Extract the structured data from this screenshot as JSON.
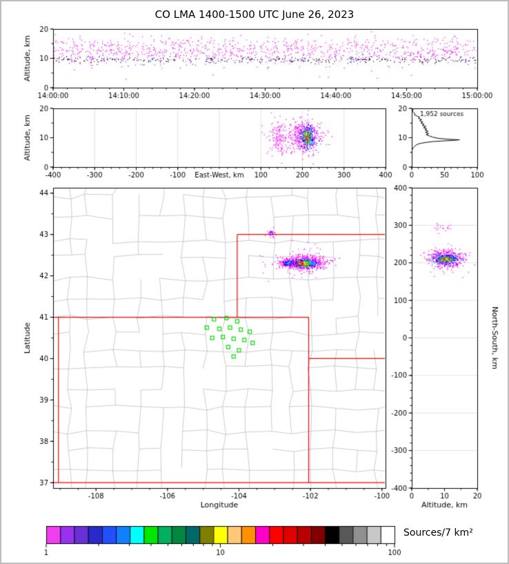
{
  "title": "CO LMA 1400-1500 UTC June 26, 2023",
  "colorbar": {
    "label": "Sources/7 km²",
    "scale": "log",
    "range": [
      1,
      100
    ],
    "major_ticks": [
      "1",
      "10",
      "100"
    ],
    "major_tick_values": [
      1,
      10,
      100
    ],
    "minor_tick_values": [
      2,
      3,
      4,
      5,
      6,
      7,
      8,
      9,
      20,
      30,
      40,
      50,
      60,
      70,
      80,
      90
    ],
    "colors": [
      "#f03ef0",
      "#9932f0",
      "#6a30d8",
      "#2a28c8",
      "#2050ff",
      "#1080ff",
      "#00ffff",
      "#00e800",
      "#00b060",
      "#008840",
      "#006868",
      "#7f7f00",
      "#ffff00",
      "#ffc878",
      "#ff9000",
      "#ff00c8",
      "#ff0000",
      "#e00000",
      "#b80000",
      "#800000",
      "#000000",
      "#585858",
      "#909090",
      "#c8c8c8",
      "#ffffff"
    ]
  },
  "chart_data": [
    {
      "id": "time_height",
      "type": "scatter",
      "ylabel": "Altitude, km",
      "xlim": [
        0,
        60
      ],
      "ylim": [
        0,
        20
      ],
      "xticks": {
        "values": [
          0,
          10,
          20,
          30,
          40,
          50,
          60
        ],
        "labels": [
          "14:00:00",
          "14:10:00",
          "14:20:00",
          "14:30:00",
          "14:40:00",
          "14:50:00",
          "15:00:00"
        ]
      },
      "yticks": {
        "values": [
          0,
          10,
          20
        ],
        "labels": [
          "0",
          "10",
          "20"
        ]
      },
      "minor": {
        "x": 2,
        "y": 5
      },
      "seed": 11,
      "clusters": [
        {
          "n": 850,
          "x": "uniform",
          "cy": 12.4,
          "sy": 2.3,
          "color": "#ff00ff",
          "size": 1.2
        },
        {
          "n": 130,
          "x": "uniform",
          "cy": 11.0,
          "sy": 2.6,
          "color": "#9900ff",
          "size": 1.2
        },
        {
          "n": 90,
          "x": "uniform",
          "cy": 14.5,
          "sy": 1.6,
          "color": "#ff00ff",
          "size": 1.2
        },
        {
          "n": 240,
          "x": "uniform",
          "cy": 9.4,
          "sy": 0.5,
          "color": "#000000",
          "size": 1.2
        },
        {
          "n": 80,
          "x": "uniform",
          "cy": 9.6,
          "sy": 0.8,
          "color": "#0000cc",
          "size": 1.2
        }
      ]
    },
    {
      "id": "ew_altitude",
      "type": "scatter",
      "ylabel": "Altitude, km",
      "xlabel": "East-West, km",
      "xlabel_inline": true,
      "xlim": [
        -400,
        400
      ],
      "ylim": [
        0,
        20
      ],
      "xticks": {
        "values": [
          -400,
          -300,
          -200,
          -100,
          100,
          200,
          300,
          400
        ],
        "labels": [
          "-400",
          "-300",
          "-200",
          "-100",
          "100",
          "200",
          "300",
          "400"
        ]
      },
      "yticks": {
        "values": [
          0,
          10,
          20
        ],
        "labels": [
          "0",
          "10",
          "20"
        ]
      },
      "grid": {
        "x": [
          -300,
          -200,
          -100,
          0,
          100,
          200,
          300
        ]
      },
      "minor": {
        "x": 20,
        "y": 5
      },
      "seed": 22,
      "clusters": [
        {
          "n": 140,
          "cx": 140,
          "sx": 12,
          "cy": 10.0,
          "sy": 2.6,
          "color": "#ff00ff",
          "size": 1.2
        },
        {
          "n": 45,
          "cx": 195,
          "sx": 40,
          "cy": 10.2,
          "sy": 3.2,
          "color": "#ff00ff",
          "size": 1.2
        },
        {
          "n": 430,
          "cx": 205,
          "sx": 20,
          "cy": 10.4,
          "sy": 2.7,
          "color": "#ff00ff",
          "size": 1.3
        },
        {
          "n": 175,
          "cx": 212,
          "sx": 10,
          "cy": 10.4,
          "sy": 2.1,
          "color": "#0000ee",
          "size": 1.3
        },
        {
          "n": 85,
          "cx": 213,
          "sx": 7,
          "cy": 10.3,
          "sy": 1.7,
          "color": "#00ccff",
          "size": 1.3
        },
        {
          "n": 50,
          "cx": 212,
          "sx": 5.5,
          "cy": 10.2,
          "sy": 1.4,
          "color": "#00cc00",
          "size": 1.3
        },
        {
          "n": 20,
          "cx": 211,
          "sx": 4.5,
          "cy": 10.2,
          "sy": 1.1,
          "color": "#ffee00",
          "size": 1.4
        },
        {
          "n": 12,
          "cx": 211,
          "sx": 4,
          "cy": 10.1,
          "sy": 1.0,
          "color": "#ff8800",
          "size": 1.4
        },
        {
          "n": 7,
          "cx": 210,
          "sx": 3.5,
          "cy": 10.1,
          "sy": 0.9,
          "color": "#ff0000",
          "size": 1.4
        }
      ]
    },
    {
      "id": "alt_histogram",
      "type": "line",
      "annotation": "1,952 sources",
      "xlim": [
        0,
        100
      ],
      "ylim": [
        0,
        20
      ],
      "xticks": {
        "values": [
          0,
          50,
          100
        ],
        "labels": [
          "0",
          "50",
          "100"
        ]
      },
      "yticks": {
        "values": [
          0,
          10,
          20
        ],
        "labels": [
          "0",
          "10",
          "20"
        ]
      },
      "minor": {
        "x": 10,
        "y": 5
      },
      "points": [
        [
          0,
          20
        ],
        [
          1,
          19.8
        ],
        [
          2,
          19.4
        ],
        [
          1,
          19.0
        ],
        [
          3,
          18.6
        ],
        [
          5,
          18.2
        ],
        [
          4,
          17.8
        ],
        [
          8,
          17.4
        ],
        [
          12,
          17.0
        ],
        [
          10,
          16.6
        ],
        [
          15,
          16.2
        ],
        [
          12,
          15.8
        ],
        [
          17,
          15.4
        ],
        [
          14,
          15.0
        ],
        [
          19,
          14.6
        ],
        [
          16,
          14.2
        ],
        [
          22,
          13.8
        ],
        [
          18,
          13.4
        ],
        [
          23,
          13.0
        ],
        [
          20,
          12.6
        ],
        [
          25,
          12.2
        ],
        [
          21,
          11.8
        ],
        [
          26,
          11.4
        ],
        [
          22,
          11.0
        ],
        [
          27,
          10.6
        ],
        [
          32,
          10.2
        ],
        [
          40,
          9.8
        ],
        [
          55,
          9.5
        ],
        [
          73,
          9.3
        ],
        [
          64,
          9.1
        ],
        [
          47,
          8.9
        ],
        [
          33,
          8.7
        ],
        [
          22,
          8.4
        ],
        [
          14,
          8.1
        ],
        [
          9,
          7.8
        ],
        [
          6,
          7.4
        ],
        [
          4,
          7.0
        ],
        [
          2,
          6.5
        ],
        [
          1,
          6.0
        ],
        [
          0,
          5.5
        ]
      ]
    },
    {
      "id": "map",
      "type": "map",
      "xlabel": "Longitude",
      "ylabel": "Latitude",
      "xlim": [
        -109.2,
        -99.9
      ],
      "ylim": [
        36.87,
        44.13
      ],
      "xticks": {
        "values": [
          -108,
          -106,
          -104,
          -102,
          -100
        ],
        "labels": [
          "-108",
          "-106",
          "-104",
          "-102",
          "-100"
        ]
      },
      "yticks": {
        "values": [
          37,
          38,
          39,
          40,
          41,
          42,
          43,
          44
        ],
        "labels": [
          "37",
          "38",
          "39",
          "40",
          "41",
          "42",
          "43",
          "44"
        ]
      },
      "minor": {
        "x": 0.5,
        "y": 0.5
      },
      "county_lines": {
        "seed": 7,
        "col_min": 0.45,
        "col_max": 0.8,
        "row_min": 0.36,
        "row_max": 0.6,
        "keep": 0.8,
        "color": "#b5b5b5"
      },
      "state_borders": {
        "color": "#ff0000",
        "segments": [
          [
            -109.05,
            37,
            -109.05,
            41
          ],
          [
            -109.2,
            41,
            -102.05,
            41
          ],
          [
            -102.05,
            37,
            -102.05,
            41
          ],
          [
            -109.2,
            37,
            -99.9,
            37
          ],
          [
            -104.05,
            41,
            -104.05,
            43
          ],
          [
            -104.05,
            43,
            -99.9,
            43
          ],
          [
            -102.05,
            40,
            -99.9,
            40
          ]
        ]
      },
      "stations": {
        "color": "#00dd00",
        "size": 5,
        "points": [
          [
            -104.7,
            40.95
          ],
          [
            -104.35,
            40.98
          ],
          [
            -104.05,
            40.9
          ],
          [
            -104.9,
            40.75
          ],
          [
            -104.55,
            40.72
          ],
          [
            -104.25,
            40.75
          ],
          [
            -103.95,
            40.7
          ],
          [
            -103.7,
            40.65
          ],
          [
            -104.75,
            40.5
          ],
          [
            -104.45,
            40.52
          ],
          [
            -104.15,
            40.48
          ],
          [
            -103.85,
            40.45
          ],
          [
            -103.62,
            40.38
          ],
          [
            -104.3,
            40.28
          ],
          [
            -104.0,
            40.2
          ],
          [
            -104.15,
            40.05
          ]
        ]
      },
      "seed": 33,
      "clusters": [
        {
          "n": 70,
          "cx": -102.3,
          "sx": 0.5,
          "cy": 42.33,
          "sy": 0.2,
          "color": "#ff00ff",
          "size": 1.2
        },
        {
          "n": 520,
          "cx": -102.15,
          "sx": 0.3,
          "cy": 42.32,
          "sy": 0.085,
          "color": "#ff00ff",
          "size": 1.4
        },
        {
          "n": 160,
          "cx": -102.15,
          "sx": 0.16,
          "cy": 42.31,
          "sy": 0.05,
          "color": "#0000ee",
          "size": 1.5
        },
        {
          "n": 80,
          "cx": -102.12,
          "sx": 0.11,
          "cy": 42.31,
          "sy": 0.04,
          "color": "#00ccff",
          "size": 1.5
        },
        {
          "n": 55,
          "cx": -102.18,
          "sx": 0.09,
          "cy": 42.3,
          "sy": 0.032,
          "color": "#00cc00",
          "size": 1.5
        },
        {
          "n": 30,
          "cx": -102.2,
          "sx": 0.07,
          "cy": 42.3,
          "sy": 0.026,
          "color": "#ffee00",
          "size": 1.6
        },
        {
          "n": 18,
          "cx": -102.22,
          "sx": 0.06,
          "cy": 42.3,
          "sy": 0.022,
          "color": "#ff8800",
          "size": 1.6
        },
        {
          "n": 12,
          "cx": -102.23,
          "sx": 0.05,
          "cy": 42.3,
          "sy": 0.018,
          "color": "#ff0000",
          "size": 1.6
        },
        {
          "n": 110,
          "cx": -102.63,
          "sx": 0.12,
          "cy": 42.3,
          "sy": 0.06,
          "color": "#ff00ff",
          "size": 1.3
        },
        {
          "n": 48,
          "cx": -102.63,
          "sx": 0.065,
          "cy": 42.3,
          "sy": 0.035,
          "color": "#0000ee",
          "size": 1.5
        },
        {
          "n": 15,
          "cx": -102.62,
          "sx": 0.04,
          "cy": 42.3,
          "sy": 0.022,
          "color": "#00ccff",
          "size": 1.5
        },
        {
          "n": 26,
          "cx": -103.1,
          "sx": 0.07,
          "cy": 43.03,
          "sy": 0.05,
          "color": "#ff00ff",
          "size": 1.3
        },
        {
          "n": 6,
          "cx": -103.1,
          "sx": 0.03,
          "cy": 43.03,
          "sy": 0.03,
          "color": "#0000ee",
          "size": 1.4
        }
      ]
    },
    {
      "id": "ns_altitude",
      "type": "scatter",
      "xlabel": "Altitude, km",
      "ylabel": "North-South, km",
      "ylabel_side": "right",
      "xlim": [
        0,
        20
      ],
      "ylim": [
        -400,
        400
      ],
      "xticks": {
        "values": [
          0,
          10,
          20
        ],
        "labels": [
          "0",
          "10",
          "20"
        ]
      },
      "yticks": {
        "values": [
          400,
          300,
          200,
          100,
          0,
          -100,
          -200,
          -300,
          -400
        ],
        "labels": [
          "400",
          "300",
          "200",
          "100",
          "0",
          "-100",
          "-200",
          "-300",
          "-400"
        ]
      },
      "grid": {
        "y": [
          -300,
          -200,
          -100,
          0,
          100,
          200,
          300
        ]
      },
      "minor": {
        "x": 5,
        "y": 20
      },
      "seed": 44,
      "clusters": [
        {
          "n": 430,
          "cx": 10.4,
          "sx": 2.7,
          "cy": 210,
          "sy": 11,
          "color": "#ff00ff",
          "size": 1.3
        },
        {
          "n": 40,
          "cx": 10.0,
          "sx": 3.2,
          "cy": 212,
          "sy": 26,
          "color": "#ff00ff",
          "size": 1.2
        },
        {
          "n": 170,
          "cx": 10.4,
          "sx": 2.1,
          "cy": 209,
          "sy": 8,
          "color": "#0000ee",
          "size": 1.3
        },
        {
          "n": 85,
          "cx": 10.3,
          "sx": 1.7,
          "cy": 209,
          "sy": 6,
          "color": "#00ccff",
          "size": 1.3
        },
        {
          "n": 50,
          "cx": 10.2,
          "sx": 1.4,
          "cy": 209,
          "sy": 4.5,
          "color": "#00cc00",
          "size": 1.3
        },
        {
          "n": 20,
          "cx": 10.2,
          "sx": 1.1,
          "cy": 210,
          "sy": 3.5,
          "color": "#ffee00",
          "size": 1.4
        },
        {
          "n": 12,
          "cx": 10.1,
          "sx": 1.0,
          "cy": 210,
          "sy": 3,
          "color": "#ff8800",
          "size": 1.4
        },
        {
          "n": 7,
          "cx": 10.1,
          "sx": 0.9,
          "cy": 210,
          "sy": 2.8,
          "color": "#ff0000",
          "size": 1.4
        },
        {
          "n": 22,
          "cx": 9.5,
          "sx": 1.6,
          "cy": 292,
          "sy": 7,
          "color": "#ff00ff",
          "size": 1.2
        }
      ]
    }
  ]
}
